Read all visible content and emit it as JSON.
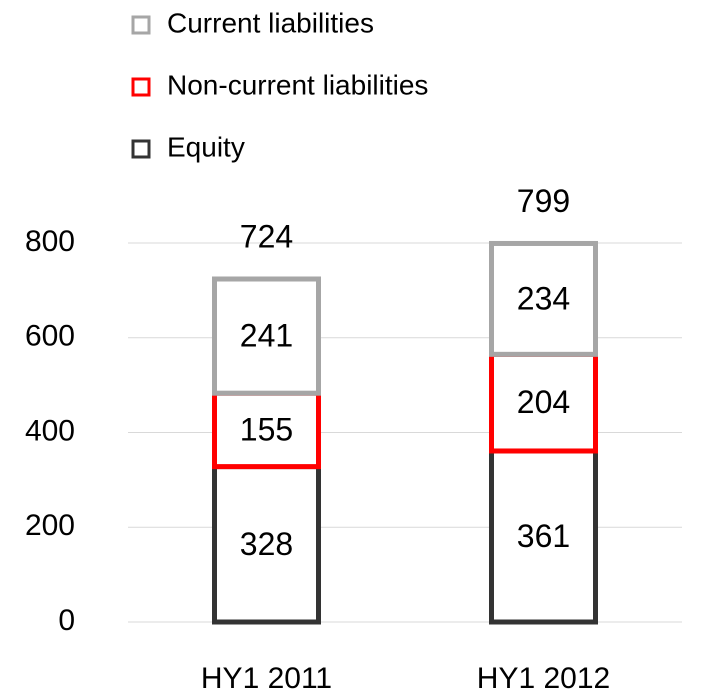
{
  "chart_data": {
    "type": "stacked_bar",
    "categories": [
      "HY1 2011",
      "HY1 2012"
    ],
    "series": [
      {
        "name": "Equity",
        "color": "#333333",
        "values": [
          328,
          361
        ]
      },
      {
        "name": "Non-current liabilities",
        "color": "#ff0000",
        "values": [
          155,
          204
        ]
      },
      {
        "name": "Current liabilities",
        "color": "#a6a6a6",
        "values": [
          241,
          234
        ]
      }
    ],
    "totals": [
      724,
      799
    ],
    "ylim": [
      0,
      800
    ],
    "yticks": [
      0,
      200,
      400,
      600,
      800
    ],
    "grid": true,
    "legend": "top"
  }
}
